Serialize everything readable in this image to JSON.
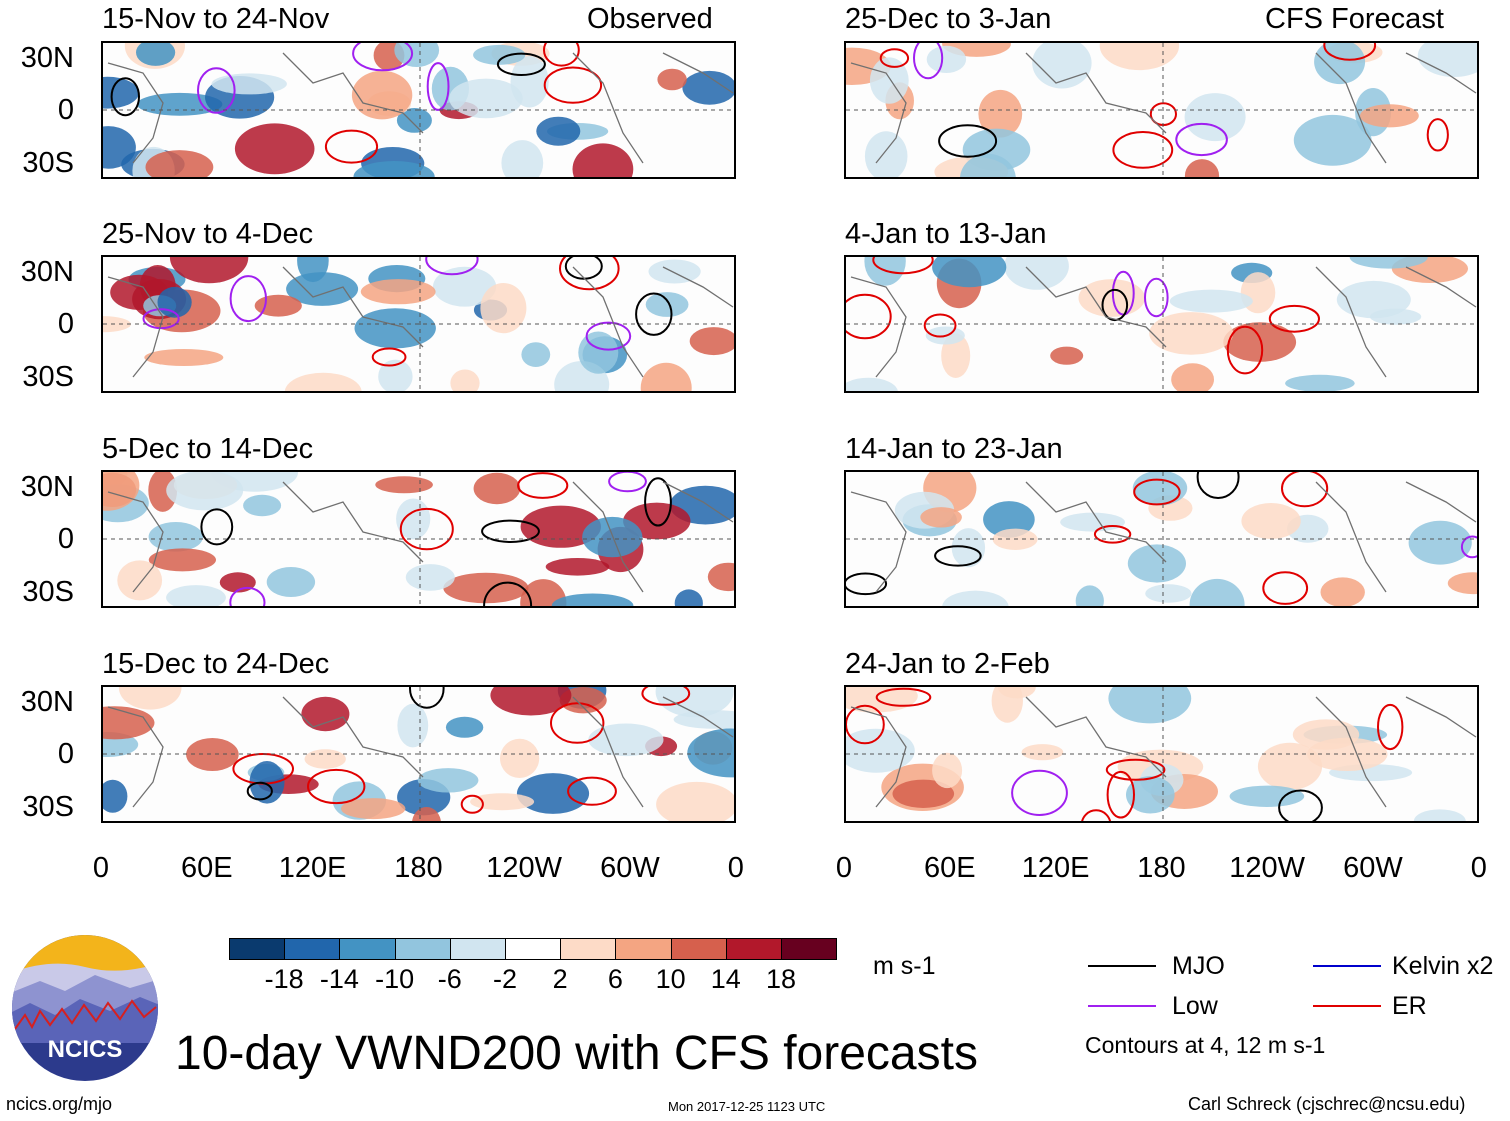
{
  "chart_data": {
    "type": "heatmap",
    "title": "10-day VWND200 with CFS forecasts",
    "variable": "VWND200",
    "units": "m s-1",
    "x_tick_labels": [
      "0",
      "60E",
      "120E",
      "180",
      "120W",
      "60W",
      "0"
    ],
    "y_tick_labels": [
      "30N",
      "0",
      "30S"
    ],
    "columns": [
      {
        "header": "Observed",
        "panels": [
          {
            "period": "15-Nov to 24-Nov"
          },
          {
            "period": "25-Nov to 4-Dec"
          },
          {
            "period": "5-Dec to 14-Dec"
          },
          {
            "period": "15-Dec to 24-Dec"
          }
        ]
      },
      {
        "header": "CFS Forecast",
        "panels": [
          {
            "period": "25-Dec to 3-Jan"
          },
          {
            "period": "4-Jan to 13-Jan"
          },
          {
            "period": "14-Jan to 23-Jan"
          },
          {
            "period": "24-Jan to 2-Feb"
          }
        ]
      }
    ],
    "colorbar": {
      "tick_labels": [
        "-18",
        "-14",
        "-10",
        "-6",
        "-2",
        "2",
        "6",
        "10",
        "14",
        "18"
      ],
      "colors": [
        "#0a3a6e",
        "#2166ac",
        "#4393c3",
        "#92c5de",
        "#d1e5f0",
        "#ffffff",
        "#fddbc7",
        "#f4a582",
        "#d6604d",
        "#b2182b",
        "#67001f"
      ]
    },
    "contours": {
      "note": "Contours at 4, 12 m s-1",
      "series": [
        {
          "name": "MJO",
          "color": "#000000"
        },
        {
          "name": "Kelvin x2",
          "color": "#0000cc"
        },
        {
          "name": "Low",
          "color": "#a020f0"
        },
        {
          "name": "ER",
          "color": "#e00000"
        }
      ]
    }
  },
  "footer": {
    "org": "NCICS",
    "url": "ncics.org/mjo",
    "timestamp": "Mon 2017-12-25 1123 UTC",
    "author": "Carl Schreck (cjschrec@ncsu.edu)"
  }
}
